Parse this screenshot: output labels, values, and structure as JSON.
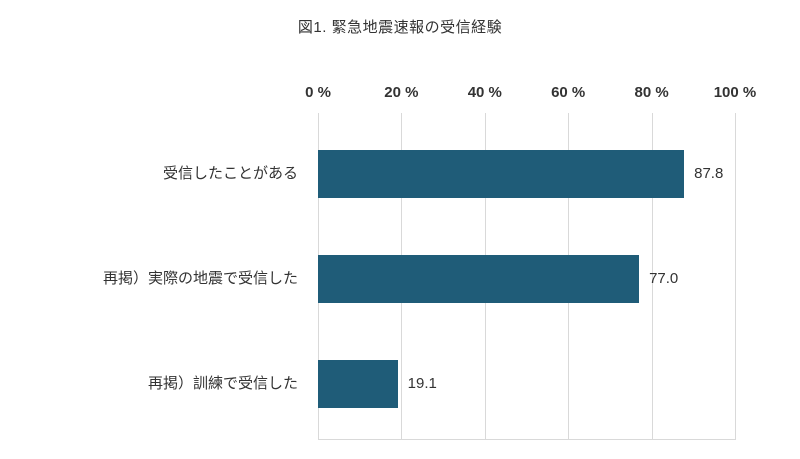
{
  "chart_data": {
    "type": "bar",
    "orientation": "horizontal",
    "title": "図1. 緊急地震速報の受信経験",
    "categories": [
      "受信したことがある",
      "再掲）実際の地震で受信した",
      "再掲）訓練で受信した"
    ],
    "values": [
      87.8,
      77.0,
      19.1
    ],
    "value_labels": [
      "87.8",
      "77.0",
      "19.1"
    ],
    "x_ticks": [
      0,
      20,
      40,
      60,
      80,
      100
    ],
    "x_tick_labels": [
      "0 %",
      "20 %",
      "40 %",
      "60 %",
      "80 %",
      "100 %"
    ],
    "xlim": [
      0,
      100
    ],
    "grid": true,
    "legend": "none",
    "bar_color": "#1f5c78",
    "gridline_color": "#d9d9d9",
    "text_color": "#333333"
  }
}
